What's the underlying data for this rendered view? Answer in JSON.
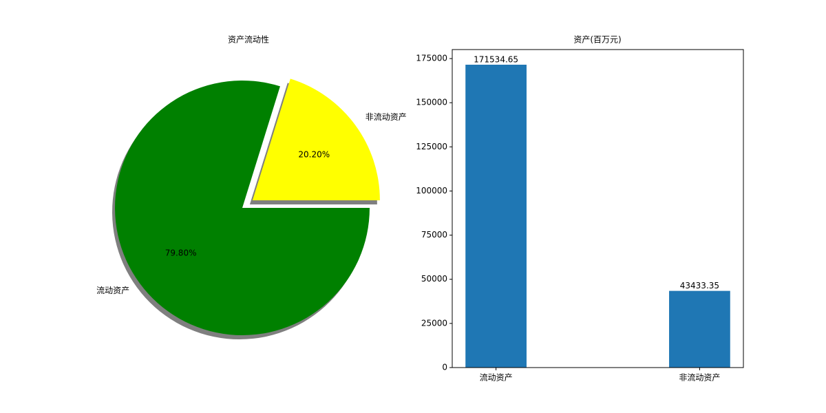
{
  "chart_data": [
    {
      "type": "pie",
      "title": "资产流动性",
      "categories": [
        "流动资产",
        "非流动资产"
      ],
      "values": [
        79.8,
        20.2
      ],
      "value_labels": [
        "79.80%",
        "20.20%"
      ],
      "colors": [
        "#008000",
        "#ffff00"
      ],
      "explode": [
        0,
        0.1
      ],
      "shadow": true
    },
    {
      "type": "bar",
      "title": "资产(百万元)",
      "categories": [
        "流动资产",
        "非流动资产"
      ],
      "values": [
        171534.65,
        43433.35
      ],
      "color": "#1f77b4",
      "ylim": [
        0,
        180111.38
      ],
      "yticks": [
        0,
        25000,
        50000,
        75000,
        100000,
        125000,
        150000,
        175000
      ]
    }
  ]
}
